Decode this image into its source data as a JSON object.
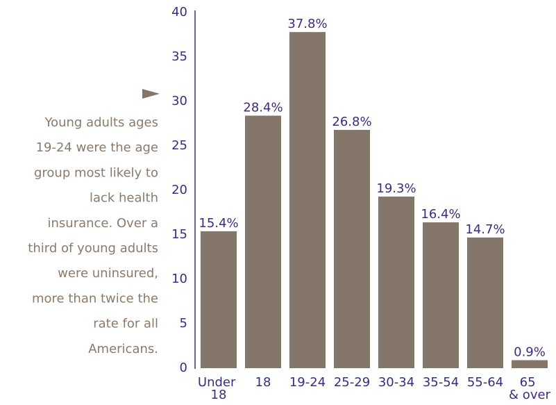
{
  "chart_data": {
    "type": "bar",
    "annotation": [
      "Young adults ages",
      "19-24 were the age",
      "group most likely to",
      "lack health",
      "insurance. Over a",
      "third of young adults",
      "were uninsured,",
      "more than twice the",
      "rate for all",
      "Americans."
    ],
    "categories": [
      "Under 18",
      "18",
      "19-24",
      "25-29",
      "30-34",
      "35-54",
      "55-64",
      "65 & over"
    ],
    "values": [
      15.4,
      28.4,
      37.8,
      26.8,
      19.3,
      16.4,
      14.7,
      0.9
    ],
    "value_labels": [
      "15.4%",
      "28.4%",
      "37.8%",
      "26.8%",
      "19.3%",
      "16.4%",
      "14.7%",
      "0.9%"
    ],
    "color": "#85766a",
    "ylim": [
      0,
      40
    ],
    "yticks": [
      0,
      5,
      10,
      15,
      20,
      25,
      30,
      35,
      40
    ],
    "grid": false
  }
}
